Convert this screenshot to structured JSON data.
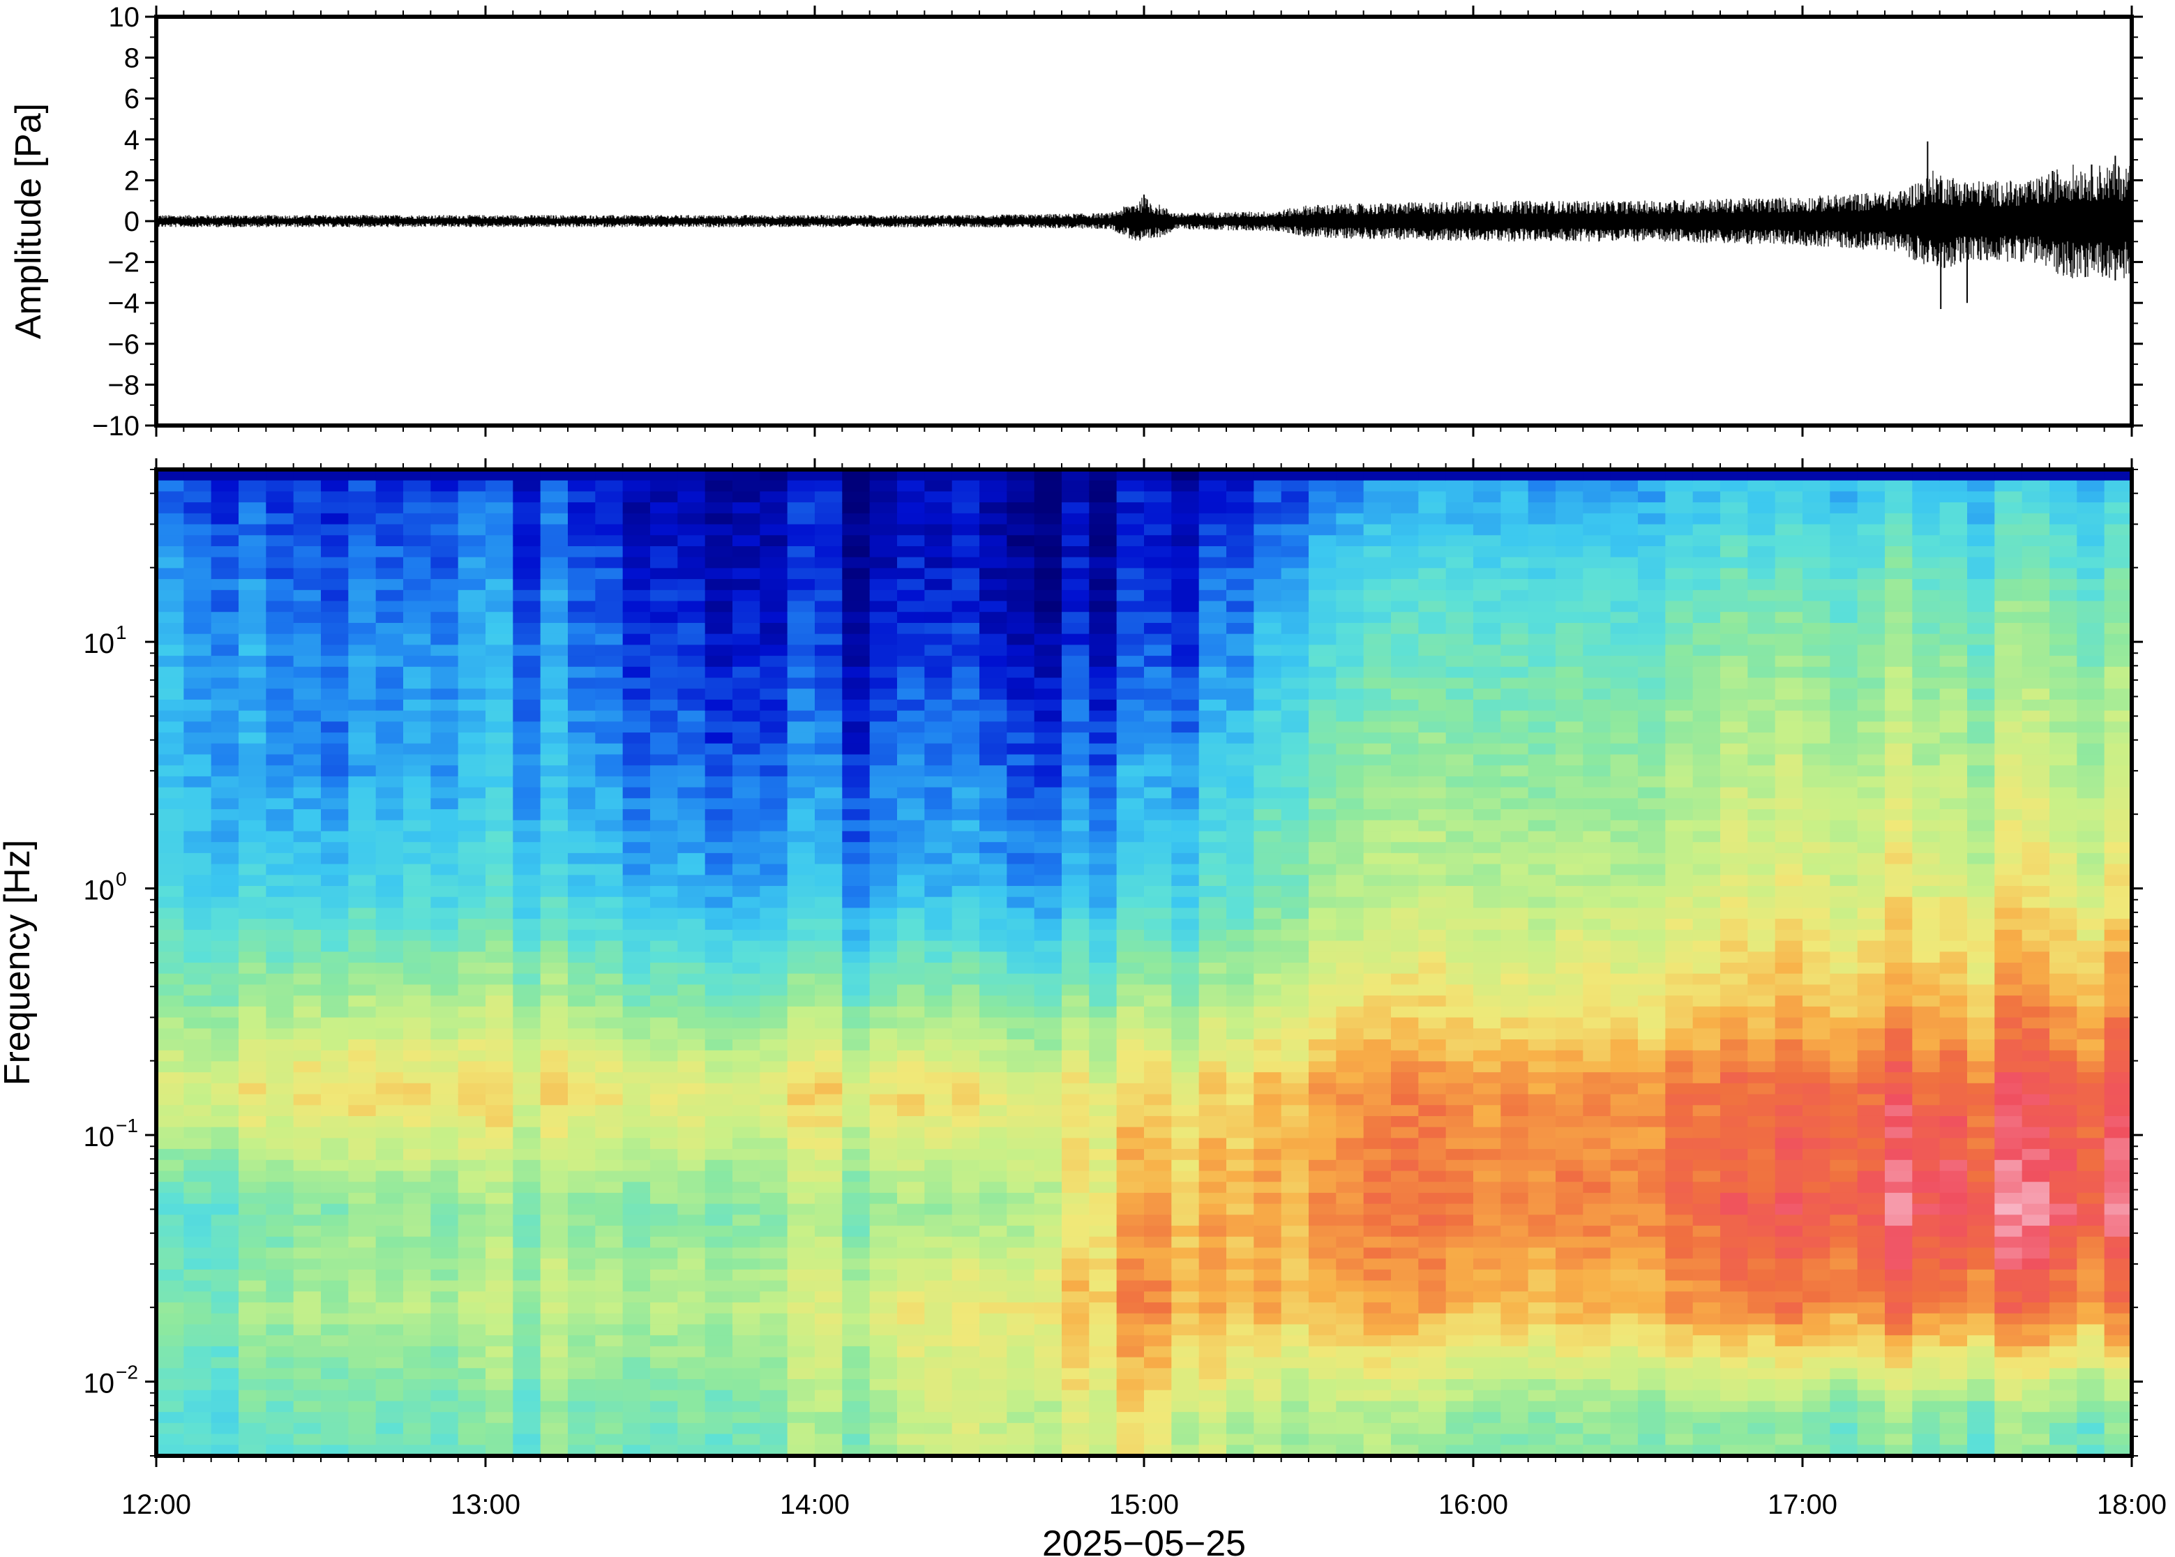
{
  "chart_data": [
    {
      "type": "line",
      "name": "waveform",
      "ylabel": "Amplitude [Pa]",
      "xlim": [
        "12:00",
        "18:00"
      ],
      "ylim": [
        -10,
        10
      ],
      "yticks": [
        10,
        8,
        6,
        4,
        2,
        0,
        -2,
        -4,
        -6,
        -8,
        -10
      ],
      "ytick_labels": [
        "10",
        "8",
        "6",
        "4",
        "2",
        "0",
        "−2",
        "−4",
        "−6",
        "−8",
        "−10"
      ],
      "envelope": {
        "time_hours": [
          12.0,
          12.5,
          13.0,
          13.5,
          14.0,
          14.5,
          14.9,
          15.0,
          15.1,
          15.4,
          15.5,
          16.0,
          16.5,
          17.0,
          17.3,
          17.4,
          17.5,
          17.7,
          17.8,
          18.0
        ],
        "amplitude_pa": [
          0.3,
          0.3,
          0.3,
          0.3,
          0.3,
          0.3,
          0.4,
          1.2,
          0.4,
          0.5,
          0.8,
          1.0,
          1.0,
          1.2,
          1.5,
          2.5,
          2.0,
          2.0,
          2.8,
          2.8
        ]
      },
      "spikes": [
        {
          "time": 15.0,
          "max": 1.3,
          "min": -0.7
        },
        {
          "time": 17.38,
          "max": 3.9,
          "min": -2.0
        },
        {
          "time": 17.42,
          "max": 2.0,
          "min": -4.3
        },
        {
          "time": 17.5,
          "max": 1.8,
          "min": -4.0
        },
        {
          "time": 17.95,
          "max": 3.2,
          "min": -2.9
        }
      ]
    },
    {
      "type": "heatmap",
      "name": "spectrogram",
      "ylabel": "Frequency [Hz]",
      "xlabel": "2025−05−25",
      "xticks": [
        "12:00",
        "13:00",
        "14:00",
        "15:00",
        "16:00",
        "17:00",
        "18:00"
      ],
      "yscale": "log",
      "ylim_hz": [
        0.005,
        50
      ],
      "yticks": [
        {
          "base": "10",
          "exp": "1"
        },
        {
          "base": "10",
          "exp": "0"
        },
        {
          "base": "10",
          "exp": "−1"
        },
        {
          "base": "10",
          "exp": "−2"
        }
      ],
      "colormap": "rainbow (dark blue → cyan → green → yellow → orange → red → pink)",
      "colormap_stops": [
        "#00007a",
        "#0010d0",
        "#1e7ff0",
        "#3cc8f0",
        "#5ce0d8",
        "#8ce8a0",
        "#c8f088",
        "#f0e878",
        "#f8b048",
        "#f07040",
        "#f05060",
        "#f8b8c8"
      ],
      "level_description": "relative power on 0–1 scale read from color",
      "time_hours": [
        12.0,
        12.5,
        13.0,
        13.5,
        14.0,
        14.5,
        15.0,
        15.5,
        16.0,
        16.5,
        17.0,
        17.5,
        18.0
      ],
      "freq_hz": [
        50,
        20,
        10,
        3,
        1,
        0.3,
        0.15,
        0.05,
        0.02,
        0.007
      ],
      "levels": [
        [
          0.18,
          0.08,
          0.12,
          0.08,
          0.06,
          0.05,
          0.05,
          0.15,
          0.22,
          0.24,
          0.25,
          0.27,
          0.28
        ],
        [
          0.26,
          0.12,
          0.18,
          0.12,
          0.07,
          0.07,
          0.07,
          0.26,
          0.34,
          0.35,
          0.37,
          0.38,
          0.4
        ],
        [
          0.3,
          0.15,
          0.22,
          0.15,
          0.1,
          0.1,
          0.1,
          0.32,
          0.4,
          0.42,
          0.44,
          0.45,
          0.47
        ],
        [
          0.32,
          0.17,
          0.24,
          0.2,
          0.17,
          0.18,
          0.2,
          0.42,
          0.48,
          0.5,
          0.52,
          0.53,
          0.55
        ],
        [
          0.36,
          0.28,
          0.32,
          0.28,
          0.24,
          0.24,
          0.28,
          0.48,
          0.54,
          0.56,
          0.58,
          0.6,
          0.62
        ],
        [
          0.52,
          0.5,
          0.52,
          0.5,
          0.48,
          0.48,
          0.5,
          0.62,
          0.66,
          0.68,
          0.7,
          0.74,
          0.78
        ],
        [
          0.62,
          0.63,
          0.63,
          0.64,
          0.64,
          0.64,
          0.64,
          0.74,
          0.78,
          0.8,
          0.82,
          0.85,
          0.88
        ],
        [
          0.4,
          0.43,
          0.45,
          0.48,
          0.47,
          0.47,
          0.72,
          0.76,
          0.8,
          0.82,
          0.85,
          0.92,
          0.92
        ],
        [
          0.46,
          0.48,
          0.5,
          0.54,
          0.56,
          0.62,
          0.76,
          0.72,
          0.72,
          0.74,
          0.78,
          0.8,
          0.8
        ],
        [
          0.4,
          0.38,
          0.4,
          0.44,
          0.46,
          0.56,
          0.6,
          0.5,
          0.46,
          0.48,
          0.42,
          0.44,
          0.44
        ]
      ]
    }
  ]
}
